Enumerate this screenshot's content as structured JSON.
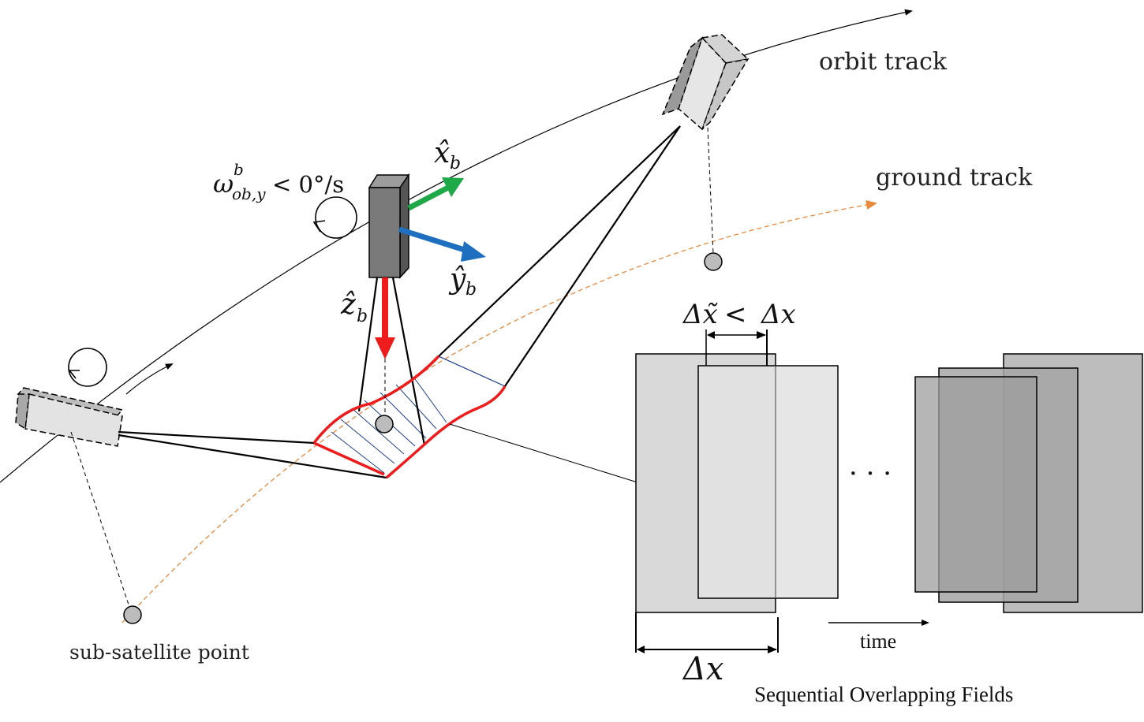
{
  "labels": {
    "orbit_track": "orbit track",
    "ground_track": "ground track",
    "sub_satellite_point": "sub-satellite point",
    "time": "time",
    "sequential_fields": "Sequential Overlapping Fields",
    "ellipsis": "· · ·"
  },
  "math": {
    "omega_symbol": "ω",
    "omega_sup": "b",
    "omega_sub": "ob,y",
    "omega_rest": " < 0°/s",
    "x_axis": "x̂",
    "x_axis_sub": "b",
    "y_axis": "ŷ",
    "y_axis_sub": "b",
    "z_axis": "ẑ",
    "z_axis_sub": "b",
    "delta_tilde_x": "Δx̃",
    "lt": " < ",
    "delta_x_inline": "Δx",
    "delta_x": "Δx"
  },
  "colors": {
    "x_axis": "#1fa847",
    "y_axis": "#1f6fc0",
    "z_axis": "#ee1c1c",
    "ground_track": "#e8883a",
    "footprint_edge": "#ee1c1c",
    "scan_lines": "#1f3f8f",
    "satellite_body": "#7a7a7a"
  }
}
